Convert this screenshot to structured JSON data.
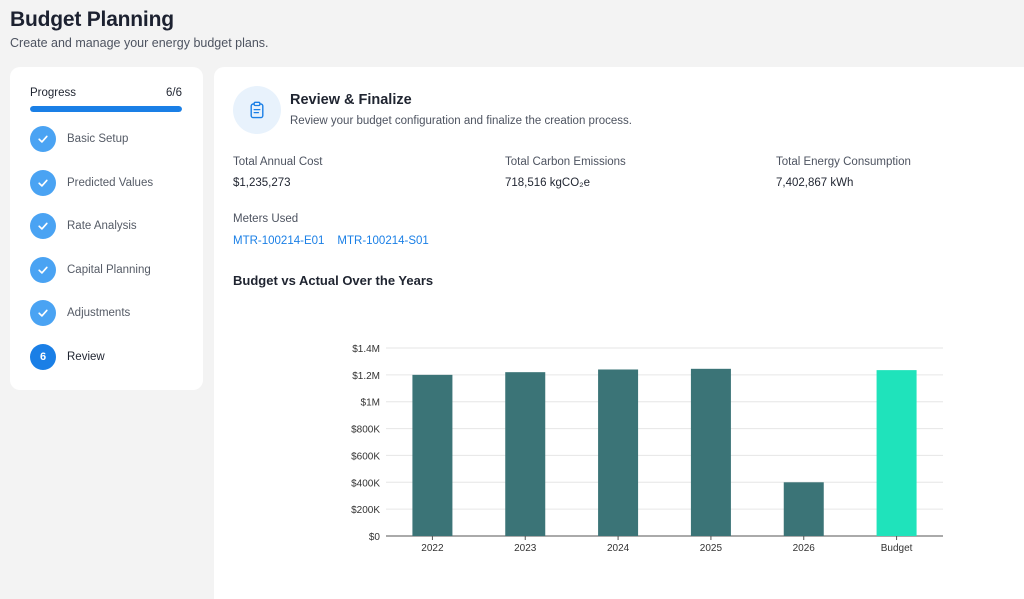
{
  "header": {
    "title": "Budget Planning",
    "subtitle": "Create and manage your energy budget plans."
  },
  "sidebar": {
    "progress_label": "Progress",
    "progress_count": "6/6",
    "progress_fraction": 1.0,
    "steps": [
      {
        "label": "Basic Setup",
        "status": "done",
        "icon": "check-icon"
      },
      {
        "label": "Predicted Values",
        "status": "done",
        "icon": "check-icon"
      },
      {
        "label": "Rate Analysis",
        "status": "done",
        "icon": "check-icon"
      },
      {
        "label": "Capital Planning",
        "status": "done",
        "icon": "check-icon"
      },
      {
        "label": "Adjustments",
        "status": "done",
        "icon": "check-icon"
      },
      {
        "label": "Review",
        "status": "current",
        "number": "6"
      }
    ]
  },
  "main": {
    "icon": "clipboard-icon",
    "title": "Review & Finalize",
    "description": "Review your budget configuration and finalize the creation process.",
    "stats": {
      "annual_cost": {
        "label": "Total Annual Cost",
        "value": "$1,235,273"
      },
      "carbon": {
        "label": "Total Carbon Emissions",
        "value": "718,516 kgCO₂e"
      },
      "energy": {
        "label": "Total Energy Consumption",
        "value": "7,402,867 kWh"
      }
    },
    "meters_label": "Meters Used",
    "meters": [
      "MTR-100214-E01",
      "MTR-100214-S01"
    ],
    "chart_title": "Budget vs Actual Over the Years"
  },
  "colors": {
    "accent": "#1a7fe6",
    "step_done": "#4aa3f3",
    "bar_actual": "#3b7477",
    "bar_budget": "#1fe3bb"
  },
  "chart_data": {
    "type": "bar",
    "title": "Budget vs Actual Over the Years",
    "xlabel": "",
    "ylabel": "",
    "categories": [
      "2022",
      "2023",
      "2024",
      "2025",
      "2026",
      "Budget"
    ],
    "values": [
      1200000,
      1220000,
      1240000,
      1245000,
      400000,
      1235273
    ],
    "ylim": [
      0,
      1400000
    ],
    "yticks": [
      0,
      200000,
      400000,
      600000,
      800000,
      1000000,
      1200000,
      1400000
    ],
    "ytick_labels": [
      "$0",
      "$200K",
      "$400K",
      "$600K",
      "$800K",
      "$1M",
      "$1.2M",
      "$1.4M"
    ],
    "grid": true,
    "legend": "none"
  }
}
